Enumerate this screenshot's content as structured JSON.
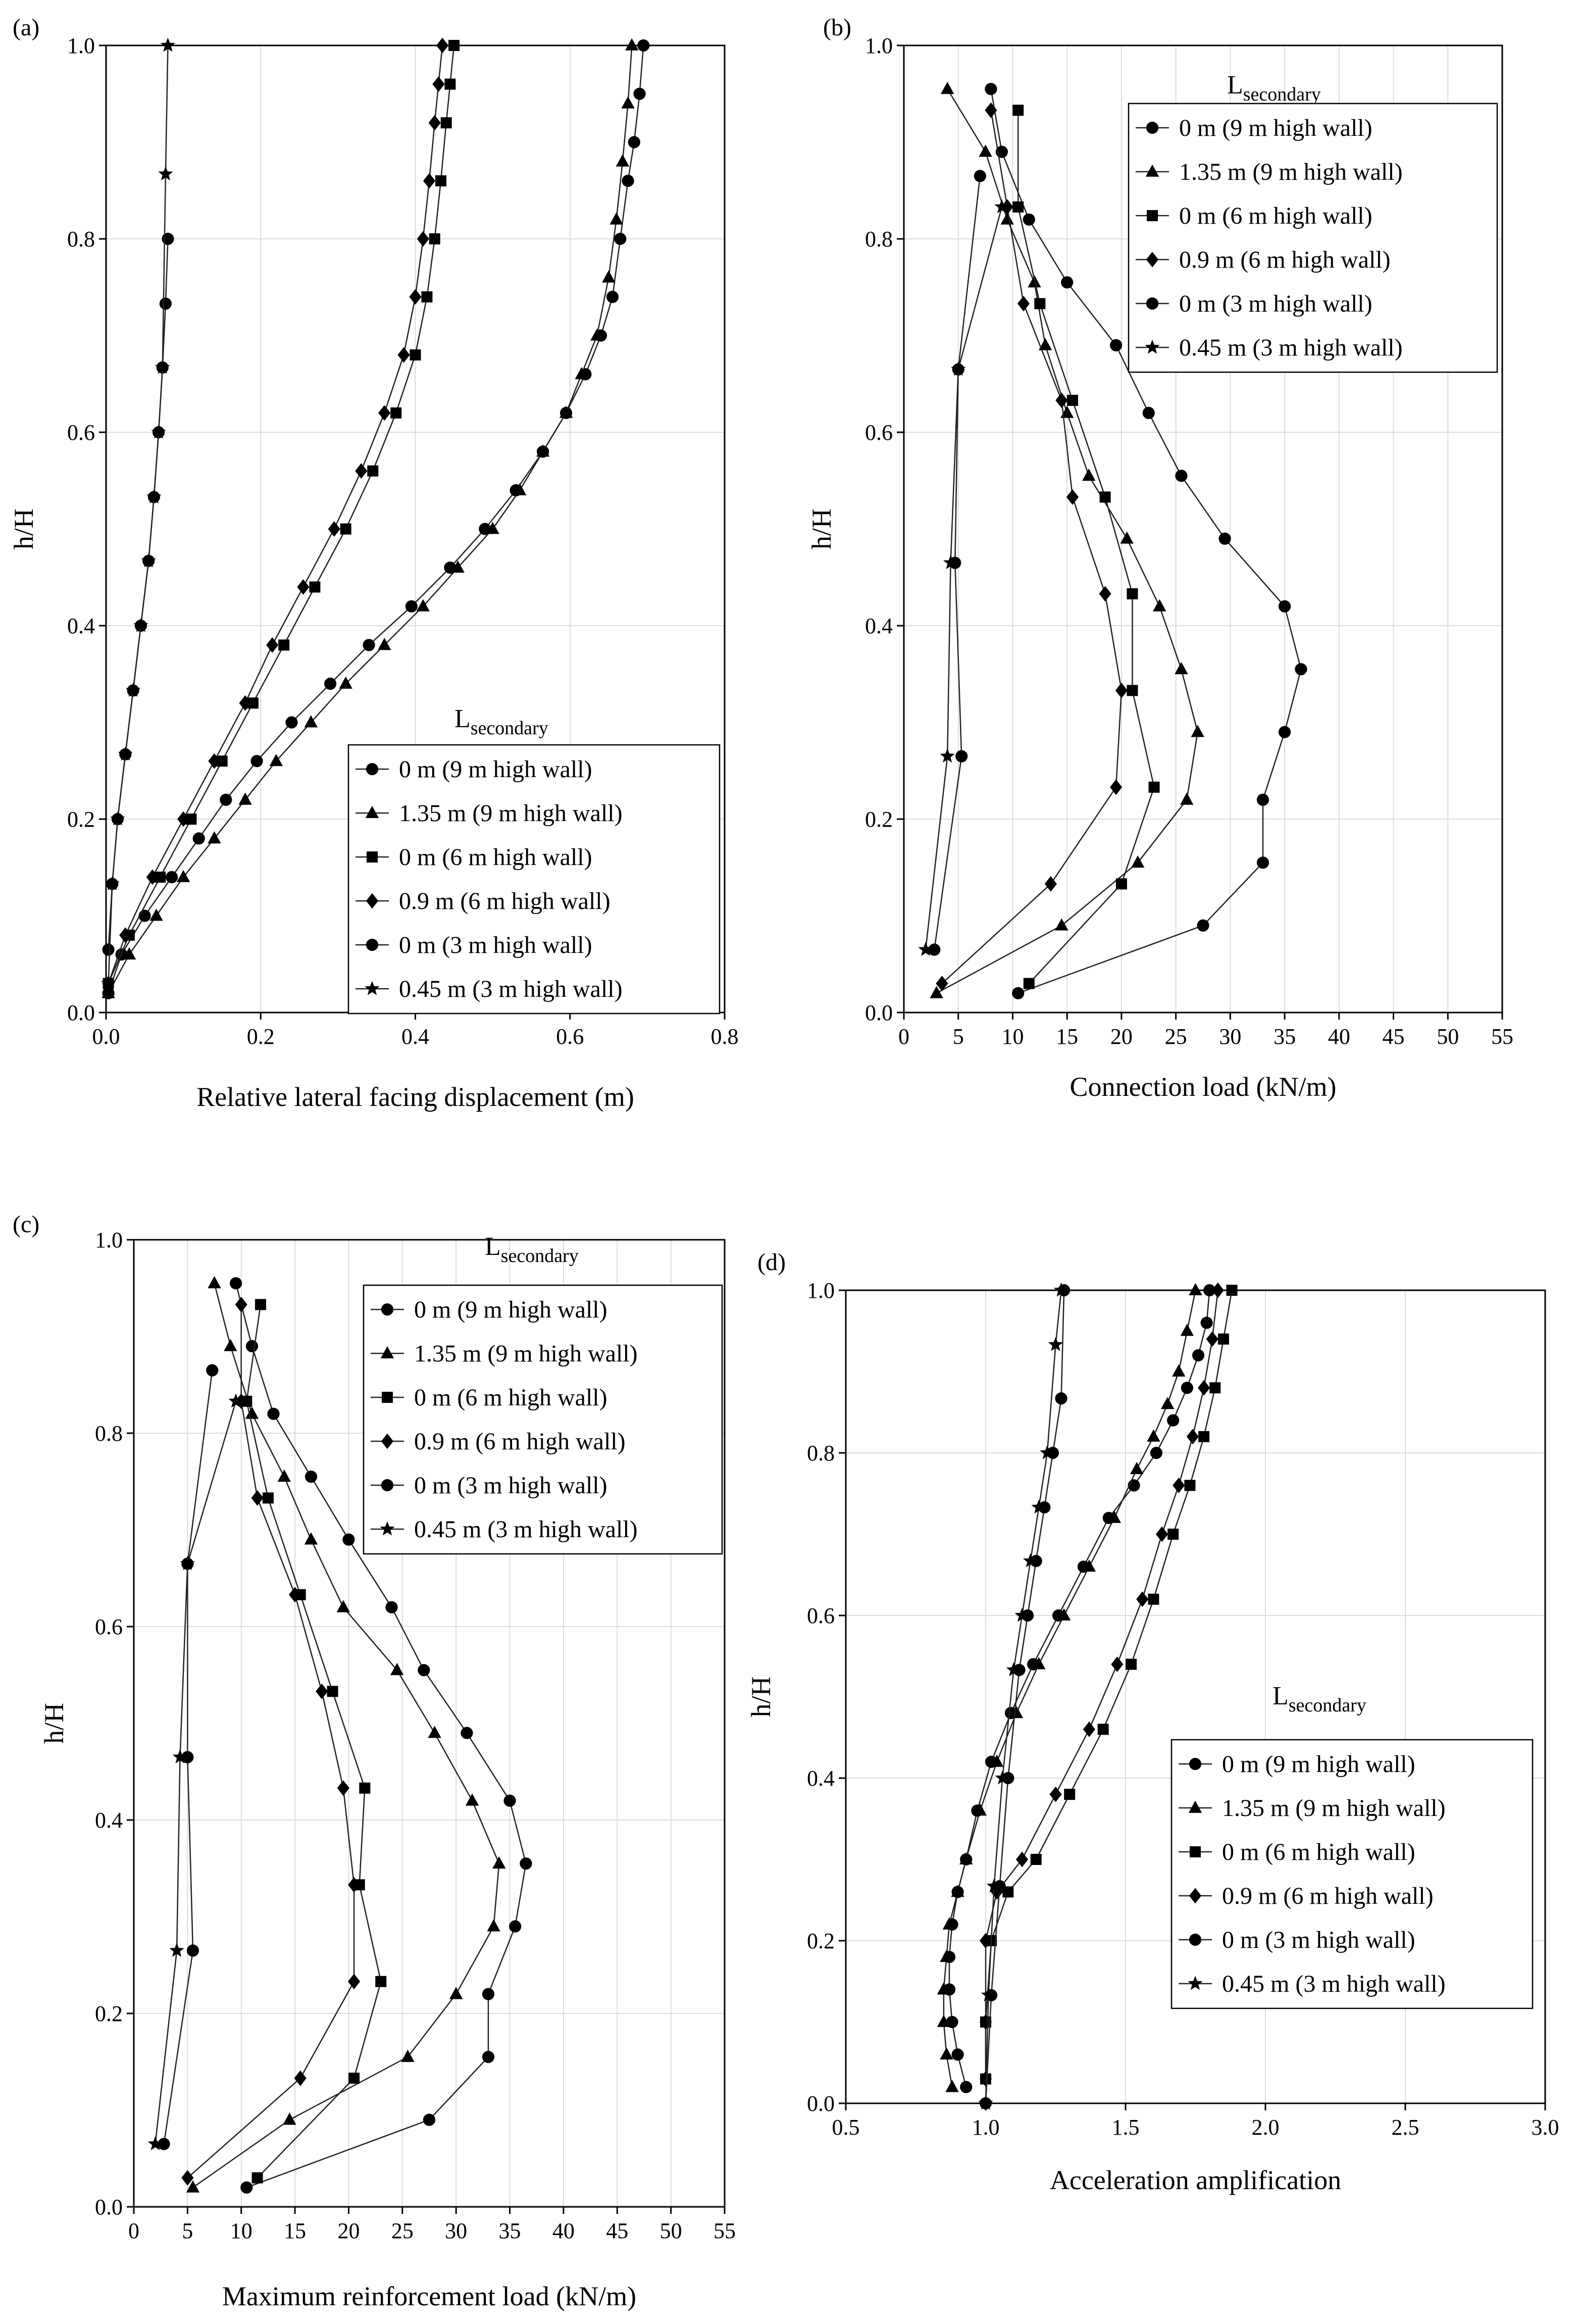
{
  "figure": {
    "panels": [
      "a",
      "b",
      "c",
      "d"
    ]
  },
  "chart_data": [
    {
      "id": "a",
      "type": "line",
      "panel_label": "(a)",
      "xlabel": "Relative lateral facing displacement (m)",
      "ylabel": "h/H",
      "xlim": [
        0,
        0.8
      ],
      "ylim": [
        0,
        1.0
      ],
      "xticks": [
        0.0,
        0.2,
        0.4,
        0.6,
        0.8
      ],
      "xtick_labels": [
        "0.0",
        "0.2",
        "0.4",
        "0.6",
        "0.8"
      ],
      "yticks": [
        0.0,
        0.2,
        0.4,
        0.6,
        0.8,
        1.0
      ],
      "ytick_labels": [
        "0.0",
        "0.2",
        "0.4",
        "0.6",
        "0.8",
        "1.0"
      ],
      "grid": true,
      "legend_position": "bottom-right",
      "legend_title": "L",
      "legend_title_sub": "secondary",
      "series": [
        {
          "name": "0 m (9 m high wall)",
          "marker": "circle",
          "x": [
            0.003,
            0.02,
            0.05,
            0.085,
            0.12,
            0.155,
            0.195,
            0.24,
            0.29,
            0.34,
            0.395,
            0.445,
            0.49,
            0.53,
            0.565,
            0.595,
            0.62,
            0.64,
            0.655,
            0.665,
            0.675,
            0.683,
            0.69,
            0.695
          ],
          "y": [
            0.02,
            0.06,
            0.1,
            0.14,
            0.18,
            0.22,
            0.26,
            0.3,
            0.34,
            0.38,
            0.42,
            0.46,
            0.5,
            0.54,
            0.58,
            0.62,
            0.66,
            0.7,
            0.74,
            0.8,
            0.86,
            0.9,
            0.95,
            1.0
          ]
        },
        {
          "name": "1.35 m (9 m high wall)",
          "marker": "triangle",
          "x": [
            0.003,
            0.03,
            0.065,
            0.1,
            0.14,
            0.18,
            0.22,
            0.265,
            0.31,
            0.36,
            0.41,
            0.455,
            0.5,
            0.535,
            0.565,
            0.595,
            0.615,
            0.635,
            0.65,
            0.66,
            0.668,
            0.675,
            0.68
          ],
          "y": [
            0.02,
            0.06,
            0.1,
            0.14,
            0.18,
            0.22,
            0.26,
            0.3,
            0.34,
            0.38,
            0.42,
            0.46,
            0.5,
            0.54,
            0.58,
            0.62,
            0.66,
            0.7,
            0.76,
            0.82,
            0.88,
            0.94,
            1.0
          ]
        },
        {
          "name": "0 m (6 m high wall)",
          "marker": "square",
          "x": [
            0.003,
            0.03,
            0.07,
            0.11,
            0.15,
            0.19,
            0.23,
            0.27,
            0.31,
            0.345,
            0.375,
            0.4,
            0.415,
            0.425,
            0.433,
            0.44,
            0.445,
            0.45
          ],
          "y": [
            0.03,
            0.08,
            0.14,
            0.2,
            0.26,
            0.32,
            0.38,
            0.44,
            0.5,
            0.56,
            0.62,
            0.68,
            0.74,
            0.8,
            0.86,
            0.92,
            0.96,
            1.0
          ]
        },
        {
          "name": "0.9 m (6 m high wall)",
          "marker": "diamond",
          "x": [
            0.003,
            0.025,
            0.06,
            0.1,
            0.14,
            0.18,
            0.215,
            0.255,
            0.295,
            0.33,
            0.36,
            0.385,
            0.4,
            0.41,
            0.418,
            0.425,
            0.43,
            0.435
          ],
          "y": [
            0.03,
            0.08,
            0.14,
            0.2,
            0.26,
            0.32,
            0.38,
            0.44,
            0.5,
            0.56,
            0.62,
            0.68,
            0.74,
            0.8,
            0.86,
            0.92,
            0.96,
            1.0
          ]
        },
        {
          "name": "0 m (3 m high wall)",
          "marker": "circle",
          "x": [
            0.003,
            0.008,
            0.015,
            0.025,
            0.035,
            0.045,
            0.055,
            0.062,
            0.068,
            0.073,
            0.077,
            0.08
          ],
          "y": [
            0.065,
            0.133,
            0.2,
            0.267,
            0.333,
            0.4,
            0.467,
            0.533,
            0.6,
            0.667,
            0.733,
            0.8
          ]
        },
        {
          "name": "0.45 m (3 m high wall)",
          "marker": "star",
          "x": [
            0.003,
            0.008,
            0.015,
            0.025,
            0.035,
            0.045,
            0.055,
            0.062,
            0.068,
            0.073,
            0.077,
            0.08
          ],
          "y": [
            0.03,
            0.133,
            0.2,
            0.267,
            0.333,
            0.4,
            0.467,
            0.533,
            0.6,
            0.667,
            0.867,
            1.0
          ]
        }
      ]
    },
    {
      "id": "b",
      "type": "line",
      "panel_label": "(b)",
      "xlabel": "Connection load (kN/m)",
      "ylabel": "h/H",
      "xlim": [
        0,
        55
      ],
      "ylim": [
        0,
        1.0
      ],
      "xticks": [
        0,
        5,
        10,
        15,
        20,
        25,
        30,
        35,
        40,
        45,
        50,
        55
      ],
      "xtick_labels": [
        "0",
        "5",
        "10",
        "15",
        "20",
        "25",
        "30",
        "35",
        "40",
        "45",
        "50",
        "55"
      ],
      "yticks": [
        0.0,
        0.2,
        0.4,
        0.6,
        0.8,
        1.0
      ],
      "ytick_labels": [
        "0.0",
        "0.2",
        "0.4",
        "0.6",
        "0.8",
        "1.0"
      ],
      "grid": true,
      "legend_position": "top-right",
      "legend_title": "L",
      "legend_title_sub": "secondary",
      "series": [
        {
          "name": "0 m (9 m high wall)",
          "marker": "circle",
          "x": [
            10.5,
            27.5,
            33,
            33,
            35,
            36.5,
            35,
            29.5,
            25.5,
            22.5,
            19.5,
            15,
            11.5,
            9,
            8
          ],
          "y": [
            0.02,
            0.09,
            0.155,
            0.22,
            0.29,
            0.355,
            0.42,
            0.49,
            0.555,
            0.62,
            0.69,
            0.755,
            0.82,
            0.89,
            0.955
          ]
        },
        {
          "name": "1.35 m (9 m high wall)",
          "marker": "triangle",
          "x": [
            3,
            14.5,
            21.5,
            26,
            27,
            25.5,
            23.5,
            20.5,
            17,
            15,
            13,
            12,
            9.5,
            7.5,
            4
          ],
          "y": [
            0.02,
            0.09,
            0.155,
            0.22,
            0.29,
            0.355,
            0.42,
            0.49,
            0.555,
            0.62,
            0.69,
            0.755,
            0.82,
            0.89,
            0.955
          ]
        },
        {
          "name": "0 m (6 m high wall)",
          "marker": "square",
          "x": [
            11.5,
            20,
            23,
            21,
            21,
            18.5,
            15.5,
            12.5,
            10.5,
            10.5
          ],
          "y": [
            0.03,
            0.133,
            0.233,
            0.333,
            0.433,
            0.533,
            0.633,
            0.733,
            0.833,
            0.933
          ]
        },
        {
          "name": "0.9 m (6 m high wall)",
          "marker": "diamond",
          "x": [
            3.5,
            13.5,
            19.5,
            20,
            18.5,
            15.5,
            14.5,
            11,
            9.5,
            8
          ],
          "y": [
            0.03,
            0.133,
            0.233,
            0.333,
            0.433,
            0.533,
            0.633,
            0.733,
            0.833,
            0.933
          ]
        },
        {
          "name": "0 m (3 m high wall)",
          "marker": "circle",
          "x": [
            2.8,
            5.3,
            4.7,
            5,
            7
          ],
          "y": [
            0.065,
            0.265,
            0.465,
            0.665,
            0.865
          ]
        },
        {
          "name": "0.45 m (3 m high wall)",
          "marker": "star",
          "x": [
            2,
            4,
            4.3,
            5,
            9
          ],
          "y": [
            0.065,
            0.265,
            0.465,
            0.665,
            0.833
          ]
        }
      ]
    },
    {
      "id": "c",
      "type": "line",
      "panel_label": "(c)",
      "xlabel": "Maximum reinforcement load (kN/m)",
      "ylabel": "h/H",
      "xlim": [
        0,
        55
      ],
      "ylim": [
        0,
        1.0
      ],
      "xticks": [
        0,
        5,
        10,
        15,
        20,
        25,
        30,
        35,
        40,
        45,
        50,
        55
      ],
      "xtick_labels": [
        "0",
        "5",
        "10",
        "15",
        "20",
        "25",
        "30",
        "35",
        "40",
        "45",
        "50",
        "55"
      ],
      "yticks": [
        0.0,
        0.2,
        0.4,
        0.6,
        0.8,
        1.0
      ],
      "ytick_labels": [
        "0.0",
        "0.2",
        "0.4",
        "0.6",
        "0.8",
        "1.0"
      ],
      "grid": true,
      "legend_position": "top-right",
      "legend_title": "L",
      "legend_title_sub": "secondary",
      "series": [
        {
          "name": "0 m (9 m high wall)",
          "marker": "circle",
          "x": [
            10.5,
            27.5,
            33,
            33,
            35.5,
            36.5,
            35,
            31,
            27,
            24,
            20,
            16.5,
            13,
            11,
            9.5
          ],
          "y": [
            0.02,
            0.09,
            0.155,
            0.22,
            0.29,
            0.355,
            0.42,
            0.49,
            0.555,
            0.62,
            0.69,
            0.755,
            0.82,
            0.89,
            0.955
          ]
        },
        {
          "name": "1.35 m (9 m high wall)",
          "marker": "triangle",
          "x": [
            5.5,
            14.5,
            25.5,
            30,
            33.5,
            34,
            31.5,
            28,
            24.5,
            19.5,
            16.5,
            14,
            11,
            9,
            7.5
          ],
          "y": [
            0.02,
            0.09,
            0.155,
            0.22,
            0.29,
            0.355,
            0.42,
            0.49,
            0.555,
            0.62,
            0.69,
            0.755,
            0.82,
            0.89,
            0.955
          ]
        },
        {
          "name": "0 m (6 m high wall)",
          "marker": "square",
          "x": [
            11.5,
            20.5,
            23,
            21,
            21.5,
            18.5,
            15.5,
            12.5,
            10.5,
            11.8
          ],
          "y": [
            0.03,
            0.133,
            0.233,
            0.333,
            0.433,
            0.533,
            0.633,
            0.733,
            0.833,
            0.933
          ]
        },
        {
          "name": "0.9 m (6 m high wall)",
          "marker": "diamond",
          "x": [
            5,
            15.5,
            20.5,
            20.5,
            19.5,
            17.5,
            15,
            11.5,
            10,
            10
          ],
          "y": [
            0.03,
            0.133,
            0.233,
            0.333,
            0.433,
            0.533,
            0.633,
            0.733,
            0.833,
            0.933
          ]
        },
        {
          "name": "0 m (3 m high wall)",
          "marker": "circle",
          "x": [
            2.8,
            5.5,
            5,
            5,
            7.3
          ],
          "y": [
            0.065,
            0.265,
            0.465,
            0.665,
            0.865
          ]
        },
        {
          "name": "0.45 m (3 m high wall)",
          "marker": "star",
          "x": [
            2,
            4,
            4.3,
            5,
            9.5
          ],
          "y": [
            0.065,
            0.265,
            0.465,
            0.665,
            0.833
          ]
        }
      ]
    },
    {
      "id": "d",
      "type": "line",
      "panel_label": "(d)",
      "xlabel": "Acceleration amplification",
      "ylabel": "h/H",
      "xlim": [
        0.5,
        3.0
      ],
      "ylim": [
        0,
        1.0
      ],
      "xticks": [
        0.5,
        1.0,
        1.5,
        2.0,
        2.5,
        3.0
      ],
      "xtick_labels": [
        "0.5",
        "1.0",
        "1.5",
        "2.0",
        "2.5",
        "3.0"
      ],
      "yticks": [
        0.0,
        0.2,
        0.4,
        0.6,
        0.8,
        1.0
      ],
      "ytick_labels": [
        "0.0",
        "0.2",
        "0.4",
        "0.6",
        "0.8",
        "1.0"
      ],
      "grid": true,
      "legend_position": "bottom-right",
      "legend_title": "L",
      "legend_title_sub": "secondary",
      "series": [
        {
          "name": "0 m (9 m high wall)",
          "marker": "circle",
          "x": [
            0.93,
            0.9,
            0.88,
            0.87,
            0.87,
            0.88,
            0.9,
            0.93,
            0.97,
            1.02,
            1.09,
            1.17,
            1.26,
            1.35,
            1.44,
            1.53,
            1.61,
            1.67,
            1.72,
            1.76,
            1.79,
            1.8
          ],
          "y": [
            0.02,
            0.06,
            0.1,
            0.14,
            0.18,
            0.22,
            0.26,
            0.3,
            0.36,
            0.42,
            0.48,
            0.54,
            0.6,
            0.66,
            0.72,
            0.76,
            0.8,
            0.84,
            0.88,
            0.92,
            0.96,
            1.0
          ]
        },
        {
          "name": "1.35 m (9 m high wall)",
          "marker": "triangle",
          "x": [
            0.88,
            0.86,
            0.85,
            0.85,
            0.86,
            0.87,
            0.9,
            0.93,
            0.98,
            1.04,
            1.11,
            1.19,
            1.28,
            1.37,
            1.46,
            1.54,
            1.6,
            1.65,
            1.69,
            1.72,
            1.75
          ],
          "y": [
            0.02,
            0.06,
            0.1,
            0.14,
            0.18,
            0.22,
            0.26,
            0.3,
            0.36,
            0.42,
            0.48,
            0.54,
            0.6,
            0.66,
            0.72,
            0.78,
            0.82,
            0.86,
            0.9,
            0.95,
            1.0
          ]
        },
        {
          "name": "0 m (6 m high wall)",
          "marker": "square",
          "x": [
            1.0,
            1.0,
            1.02,
            1.08,
            1.18,
            1.3,
            1.42,
            1.52,
            1.6,
            1.67,
            1.73,
            1.78,
            1.82,
            1.85,
            1.88
          ],
          "y": [
            0.03,
            0.1,
            0.2,
            0.26,
            0.3,
            0.38,
            0.46,
            0.54,
            0.62,
            0.7,
            0.76,
            0.82,
            0.88,
            0.94,
            1.0
          ]
        },
        {
          "name": "0.9 m (6 m high wall)",
          "marker": "diamond",
          "x": [
            1.0,
            1.0,
            1.0,
            1.04,
            1.13,
            1.25,
            1.37,
            1.47,
            1.56,
            1.63,
            1.69,
            1.74,
            1.78,
            1.81,
            1.83
          ],
          "y": [
            0.03,
            0.1,
            0.2,
            0.26,
            0.3,
            0.38,
            0.46,
            0.54,
            0.62,
            0.7,
            0.76,
            0.82,
            0.88,
            0.94,
            1.0
          ]
        },
        {
          "name": "0 m (3 m high wall)",
          "marker": "circle",
          "x": [
            1.0,
            1.02,
            1.05,
            1.08,
            1.12,
            1.15,
            1.18,
            1.21,
            1.24,
            1.27,
            1.28
          ],
          "y": [
            0.0,
            0.133,
            0.267,
            0.4,
            0.533,
            0.6,
            0.667,
            0.733,
            0.8,
            0.867,
            1.0
          ]
        },
        {
          "name": "0.45 m (3 m high wall)",
          "marker": "star",
          "x": [
            1.0,
            1.01,
            1.03,
            1.06,
            1.1,
            1.13,
            1.16,
            1.19,
            1.22,
            1.25,
            1.27
          ],
          "y": [
            0.0,
            0.133,
            0.267,
            0.4,
            0.533,
            0.6,
            0.667,
            0.733,
            0.8,
            0.933,
            1.0
          ]
        }
      ]
    }
  ]
}
